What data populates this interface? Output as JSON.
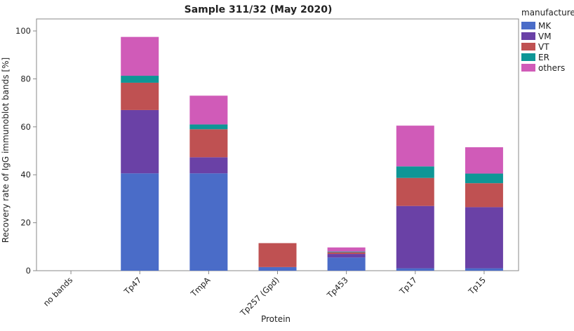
{
  "chart_data": {
    "type": "bar",
    "stacked": true,
    "title": "Sample 311/32 (May 2020)",
    "xlabel": "Protein",
    "ylabel": "Recovery rate of IgG immunoblot bands [%]",
    "ylim": [
      0,
      105
    ],
    "yticks": [
      0,
      20,
      40,
      60,
      80,
      100
    ],
    "grid": false,
    "legend_placement": "right",
    "legend_title": "manufacturer",
    "categories": [
      "no bands",
      "Tp47",
      "TmpA",
      "Tp257 (Gpd)",
      "Tp453",
      "Tp17",
      "Tp15"
    ],
    "series": [
      {
        "name": "MK",
        "color": "#4a6cc8",
        "values": [
          0,
          40.6,
          40.6,
          1.5,
          5.5,
          1.0,
          1.0
        ]
      },
      {
        "name": "VM",
        "color": "#6a41a6",
        "values": [
          0,
          26.4,
          6.7,
          0,
          1.5,
          26.0,
          25.5
        ]
      },
      {
        "name": "VT",
        "color": "#bf5152",
        "values": [
          0,
          11.4,
          11.7,
          10.0,
          0.7,
          11.7,
          10.0
        ]
      },
      {
        "name": "ER",
        "color": "#0e9696",
        "values": [
          0,
          2.9,
          2.0,
          0,
          0.3,
          4.8,
          4.0
        ]
      },
      {
        "name": "others",
        "color": "#d05bb8",
        "values": [
          0,
          16.2,
          12.0,
          0,
          1.7,
          17.0,
          11.0
        ]
      }
    ]
  }
}
